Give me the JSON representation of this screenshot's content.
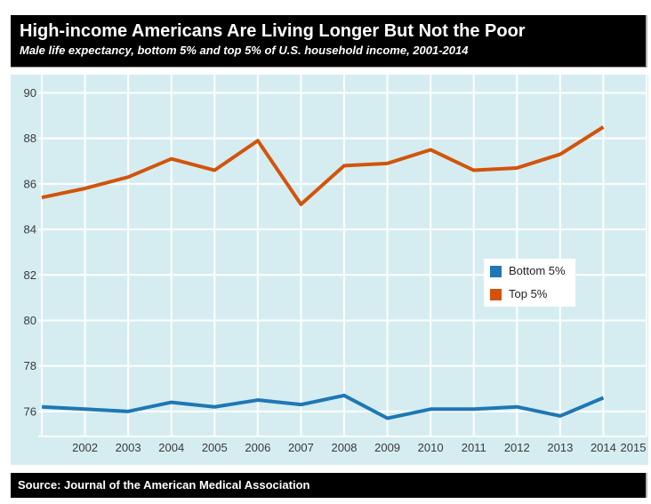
{
  "chart_data": {
    "type": "line",
    "title": "High-income Americans Are Living Longer But Not the Poor",
    "subtitle": "Male life expectancy, bottom 5% and top 5% of U.S. household income, 2001-2014",
    "source": "Source: Journal of the American Medical Association",
    "x": [
      2001,
      2002,
      2003,
      2004,
      2005,
      2006,
      2007,
      2008,
      2009,
      2010,
      2011,
      2012,
      2013,
      2014
    ],
    "series": [
      {
        "name": "Bottom 5%",
        "color": "#1f77b4",
        "values": [
          76.2,
          76.1,
          76.0,
          76.4,
          76.2,
          76.5,
          76.3,
          76.7,
          75.7,
          76.1,
          76.1,
          76.2,
          75.8,
          76.6
        ]
      },
      {
        "name": "Top 5%",
        "color": "#d2540a",
        "values": [
          85.4,
          85.8,
          86.3,
          87.1,
          86.6,
          87.9,
          85.1,
          86.8,
          86.9,
          87.5,
          86.6,
          86.7,
          87.3,
          88.5
        ]
      }
    ],
    "xlabel": "",
    "ylabel": "",
    "x_ticks": [
      2002,
      2003,
      2004,
      2005,
      2006,
      2007,
      2008,
      2009,
      2010,
      2011,
      2012,
      2013,
      2014,
      2015
    ],
    "y_ticks": [
      76,
      78,
      80,
      82,
      84,
      86,
      88,
      90
    ],
    "xlim": [
      2001,
      2015
    ],
    "ylim": [
      74.9,
      90.8
    ],
    "grid": true,
    "legend_position": "middle-right",
    "plot_background": "#d5edf1",
    "gridline_color": "#ffffff",
    "tick_color": "#3a3a3a",
    "header_background": "#000000",
    "header_text_color": "#ffffff"
  }
}
